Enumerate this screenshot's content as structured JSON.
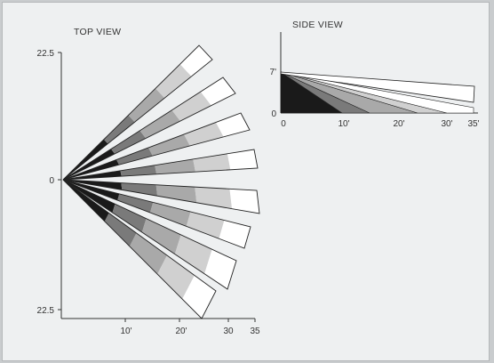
{
  "top_view": {
    "title": "TOP VIEW",
    "y_labels": [
      "22.5",
      "0",
      "22.5"
    ],
    "x_labels": [
      "10'",
      "20'",
      "30",
      "35"
    ]
  },
  "side_view": {
    "title": "SIDE VIEW",
    "y_labels": [
      "7'",
      "0"
    ],
    "x_labels": [
      "0",
      "10'",
      "20'",
      "30'",
      "35'"
    ]
  },
  "colors": {
    "frame_bg": "#eef0f1",
    "outer_bg": "#c9ccce",
    "zone_black": "#1a1a1a",
    "zone_dark": "#7a7a7a",
    "zone_mid": "#a9a9a9",
    "zone_light": "#d0d0d0",
    "zone_white": "#ffffff"
  }
}
